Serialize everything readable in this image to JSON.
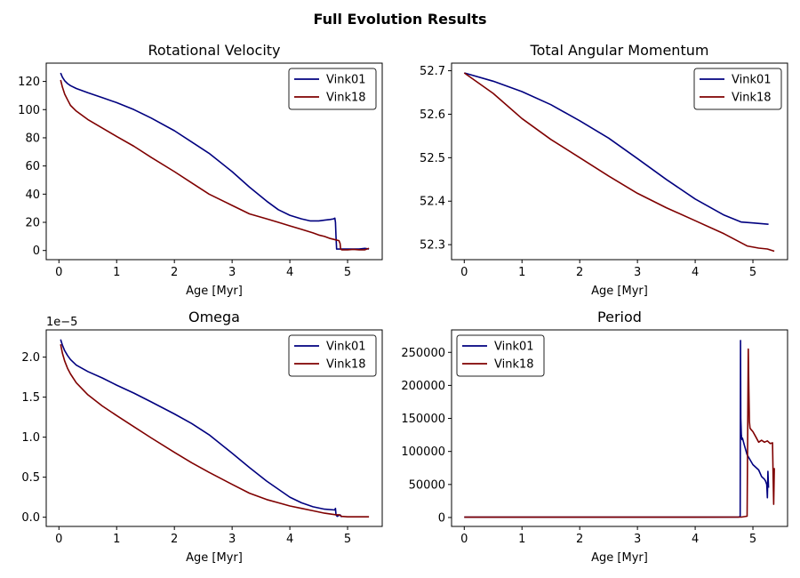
{
  "figure": {
    "title": "Full Evolution Results"
  },
  "colors": {
    "Vink01": "#00007f",
    "Vink18": "#7f0000"
  },
  "chart_data": [
    {
      "type": "line",
      "title": "Rotational Velocity",
      "xlabel": "Age [Myr]",
      "ylabel": "",
      "xlim": [
        -0.22,
        5.6
      ],
      "ylim": [
        -6.5,
        133
      ],
      "xticks": [
        0,
        1,
        2,
        3,
        4,
        5
      ],
      "xtick_labels": [
        "0",
        "1",
        "2",
        "3",
        "4",
        "5"
      ],
      "yticks": [
        0,
        20,
        40,
        60,
        80,
        100,
        120
      ],
      "ytick_labels": [
        "0",
        "20",
        "40",
        "60",
        "80",
        "100",
        "120"
      ],
      "offset_text": "",
      "legend_position": "upper-right",
      "series": [
        {
          "name": "Vink01",
          "x": [
            0.03,
            0.06,
            0.1,
            0.15,
            0.2,
            0.3,
            0.5,
            0.75,
            1.0,
            1.3,
            1.6,
            2.0,
            2.3,
            2.6,
            3.0,
            3.3,
            3.6,
            3.8,
            4.0,
            4.2,
            4.35,
            4.5,
            4.6,
            4.7,
            4.76,
            4.78,
            4.79,
            4.8,
            4.81,
            4.9,
            5.0,
            5.2,
            5.3,
            5.37
          ],
          "y": [
            126,
            123,
            120.5,
            118.5,
            117,
            115,
            112,
            108.5,
            105,
            100,
            94,
            85,
            77,
            69,
            56,
            45,
            35,
            29,
            25,
            22.5,
            21,
            21,
            21.5,
            22,
            22.5,
            23,
            20,
            10,
            1,
            1,
            1,
            1,
            1.5,
            1
          ]
        },
        {
          "name": "Vink18",
          "x": [
            0.03,
            0.06,
            0.1,
            0.15,
            0.2,
            0.3,
            0.5,
            0.75,
            1.0,
            1.3,
            1.6,
            2.0,
            2.3,
            2.6,
            3.0,
            3.3,
            3.6,
            3.8,
            4.0,
            4.2,
            4.4,
            4.5,
            4.6,
            4.7,
            4.8,
            4.85,
            4.87,
            4.88,
            4.9,
            5.0,
            5.1,
            5.2,
            5.3,
            5.37
          ],
          "y": [
            121,
            116,
            111,
            107,
            103,
            99,
            93,
            87,
            81,
            74,
            66,
            56,
            48,
            40,
            32,
            26,
            22.5,
            20,
            17.5,
            15,
            12.5,
            11,
            10,
            8.5,
            7.5,
            7,
            5,
            1,
            0.5,
            0.5,
            0.8,
            0.5,
            0.5,
            1.5
          ]
        }
      ]
    },
    {
      "type": "line",
      "title": "Total Angular Momentum",
      "xlabel": "Age [Myr]",
      "ylabel": "",
      "xlim": [
        -0.22,
        5.6
      ],
      "ylim": [
        52.2655,
        52.7175
      ],
      "xticks": [
        0,
        1,
        2,
        3,
        4,
        5
      ],
      "xtick_labels": [
        "0",
        "1",
        "2",
        "3",
        "4",
        "5"
      ],
      "yticks": [
        52.3,
        52.4,
        52.5,
        52.6,
        52.7
      ],
      "ytick_labels": [
        "52.3",
        "52.4",
        "52.5",
        "52.6",
        "52.7"
      ],
      "offset_text": "",
      "legend_position": "upper-right",
      "series": [
        {
          "name": "Vink01",
          "x": [
            0.0,
            0.5,
            1.0,
            1.5,
            2.0,
            2.5,
            3.0,
            3.5,
            4.0,
            4.5,
            4.8,
            5.0,
            5.27
          ],
          "y": [
            52.695,
            52.676,
            52.652,
            52.622,
            52.585,
            52.545,
            52.498,
            52.45,
            52.405,
            52.368,
            52.352,
            52.35,
            52.347
          ]
        },
        {
          "name": "Vink18",
          "x": [
            0.0,
            0.5,
            1.0,
            1.5,
            2.0,
            2.5,
            3.0,
            3.5,
            4.0,
            4.5,
            4.9,
            5.1,
            5.25,
            5.37
          ],
          "y": [
            52.695,
            52.648,
            52.59,
            52.542,
            52.5,
            52.458,
            52.418,
            52.385,
            52.355,
            52.325,
            52.297,
            52.292,
            52.29,
            52.285
          ]
        }
      ]
    },
    {
      "type": "line",
      "title": "Omega",
      "xlabel": "Age [Myr]",
      "ylabel": "",
      "xlim": [
        -0.22,
        5.6
      ],
      "ylim": [
        -0.115,
        2.34
      ],
      "xticks": [
        0,
        1,
        2,
        3,
        4,
        5
      ],
      "xtick_labels": [
        "0",
        "1",
        "2",
        "3",
        "4",
        "5"
      ],
      "yticks": [
        0.0,
        0.5,
        1.0,
        1.5,
        2.0
      ],
      "ytick_labels": [
        "0.0",
        "0.5",
        "1.0",
        "1.5",
        "2.0"
      ],
      "offset_text": "1e−5",
      "legend_position": "upper-right",
      "series": [
        {
          "name": "Vink01",
          "x": [
            0.03,
            0.06,
            0.1,
            0.15,
            0.2,
            0.3,
            0.5,
            0.75,
            1.0,
            1.3,
            1.6,
            2.0,
            2.3,
            2.6,
            3.0,
            3.3,
            3.6,
            3.8,
            4.0,
            4.2,
            4.4,
            4.6,
            4.78,
            4.79,
            4.8,
            4.82,
            4.87,
            4.9
          ],
          "y": [
            2.22,
            2.15,
            2.08,
            2.02,
            1.97,
            1.9,
            1.82,
            1.74,
            1.65,
            1.55,
            1.44,
            1.29,
            1.17,
            1.03,
            0.8,
            0.62,
            0.45,
            0.35,
            0.25,
            0.18,
            0.13,
            0.1,
            0.09,
            0.11,
            0.03,
            0.01,
            0.03,
            0.0
          ]
        },
        {
          "name": "Vink18",
          "x": [
            0.03,
            0.06,
            0.1,
            0.15,
            0.2,
            0.3,
            0.5,
            0.75,
            1.0,
            1.3,
            1.6,
            2.0,
            2.3,
            2.6,
            3.0,
            3.3,
            3.6,
            3.8,
            4.0,
            4.2,
            4.4,
            4.6,
            4.8,
            4.85,
            4.9,
            5.0,
            5.2,
            5.37
          ],
          "y": [
            2.16,
            2.05,
            1.95,
            1.86,
            1.79,
            1.68,
            1.53,
            1.39,
            1.27,
            1.13,
            0.99,
            0.81,
            0.68,
            0.56,
            0.41,
            0.3,
            0.22,
            0.18,
            0.14,
            0.11,
            0.08,
            0.05,
            0.03,
            0.03,
            0.01,
            0.005,
            0.005,
            0.005
          ]
        }
      ]
    },
    {
      "type": "line",
      "title": "Period",
      "xlabel": "Age [Myr]",
      "ylabel": "",
      "xlim": [
        -0.22,
        5.6
      ],
      "ylim": [
        -13500,
        284000
      ],
      "xticks": [
        0,
        1,
        2,
        3,
        4,
        5
      ],
      "xtick_labels": [
        "0",
        "1",
        "2",
        "3",
        "4",
        "5"
      ],
      "yticks": [
        0,
        50000,
        100000,
        150000,
        200000,
        250000
      ],
      "ytick_labels": [
        "0",
        "50000",
        "100000",
        "150000",
        "200000",
        "250000"
      ],
      "offset_text": "",
      "legend_position": "upper-left",
      "series": [
        {
          "name": "Vink01",
          "x": [
            0.0,
            1.0,
            2.0,
            3.0,
            4.0,
            4.75,
            4.78,
            4.785,
            4.79,
            4.8,
            4.81,
            4.82,
            4.85,
            4.9,
            5.0,
            5.1,
            5.15,
            5.2,
            5.22,
            5.24,
            5.25,
            5.26,
            5.27
          ],
          "y": [
            500,
            500,
            500,
            500,
            500,
            600,
            1500,
            268000,
            150000,
            125000,
            118000,
            120000,
            110000,
            95000,
            80000,
            72000,
            62000,
            58000,
            55000,
            50000,
            30000,
            70000,
            45000
          ]
        },
        {
          "name": "Vink18",
          "x": [
            0.0,
            1.0,
            2.0,
            3.0,
            4.0,
            4.8,
            4.9,
            4.92,
            4.93,
            4.94,
            4.95,
            4.97,
            5.0,
            5.05,
            5.1,
            5.15,
            5.2,
            5.25,
            5.3,
            5.34,
            5.35,
            5.36,
            5.37
          ],
          "y": [
            500,
            500,
            500,
            500,
            500,
            700,
            2000,
            255000,
            190000,
            145000,
            135000,
            133000,
            130000,
            122000,
            114000,
            117000,
            114000,
            116000,
            112000,
            113000,
            60000,
            20000,
            75000
          ]
        }
      ]
    }
  ]
}
